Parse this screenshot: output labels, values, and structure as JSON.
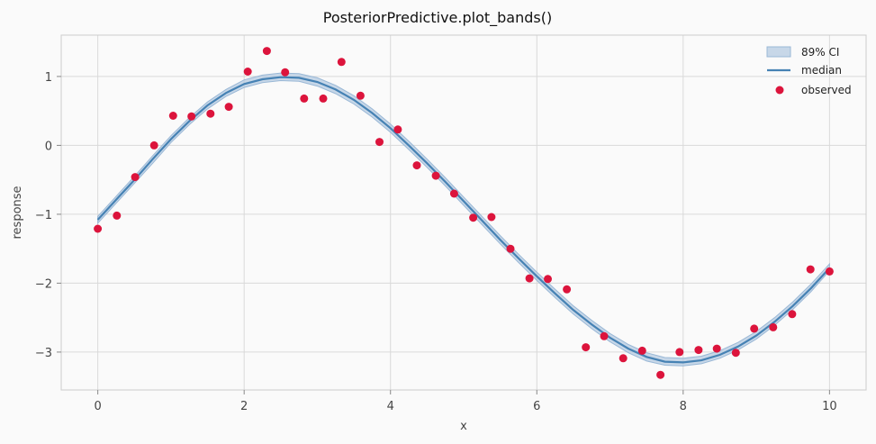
{
  "chart_data": {
    "type": "line",
    "title": "PosteriorPredictive.plot_bands()",
    "xlabel": "x",
    "ylabel": "response",
    "xlim": [
      -0.5,
      10.5
    ],
    "ylim": [
      -3.55,
      1.6
    ],
    "xticks": [
      0,
      2,
      4,
      6,
      8,
      10
    ],
    "xtick_labels": [
      "0",
      "2",
      "4",
      "6",
      "8",
      "10"
    ],
    "yticks": [
      1,
      0,
      -1,
      -2,
      -3
    ],
    "ytick_labels": [
      "1",
      "0",
      "−1",
      "−2",
      "−3"
    ],
    "grid": true,
    "legend_position": "top-right",
    "legend": {
      "band_label": "89% CI",
      "median_label": "median",
      "observed_label": "observed"
    },
    "colors": {
      "band_fill": "#b0c8e0",
      "band_edge": "#9ab8d6",
      "median": "#4682b4",
      "observed": "#dc143c",
      "grid": "#d9d9d9",
      "frame": "#cccccc"
    },
    "band": {
      "x": [
        0,
        0.25,
        0.5,
        0.75,
        1.0,
        1.25,
        1.5,
        1.75,
        2.0,
        2.25,
        2.5,
        2.75,
        3.0,
        3.25,
        3.5,
        3.75,
        4.0,
        4.25,
        4.5,
        4.75,
        5.0,
        5.25,
        5.5,
        5.75,
        6.0,
        6.25,
        6.5,
        6.75,
        7.0,
        7.25,
        7.5,
        7.75,
        8.0,
        8.25,
        8.5,
        8.75,
        9.0,
        9.25,
        9.5,
        9.75,
        10.0
      ],
      "median": [
        -1.08,
        -0.79,
        -0.5,
        -0.2,
        0.09,
        0.35,
        0.58,
        0.76,
        0.89,
        0.96,
        0.99,
        0.98,
        0.92,
        0.81,
        0.66,
        0.47,
        0.25,
        0.0,
        -0.26,
        -0.53,
        -0.81,
        -1.09,
        -1.37,
        -1.64,
        -1.9,
        -2.15,
        -2.39,
        -2.6,
        -2.79,
        -2.95,
        -3.07,
        -3.14,
        -3.15,
        -3.12,
        -3.04,
        -2.92,
        -2.76,
        -2.56,
        -2.33,
        -2.07,
        -1.78
      ],
      "lower": [
        -1.13,
        -0.84,
        -0.55,
        -0.26,
        0.04,
        0.3,
        0.53,
        0.71,
        0.84,
        0.91,
        0.94,
        0.93,
        0.86,
        0.75,
        0.6,
        0.41,
        0.19,
        -0.06,
        -0.32,
        -0.59,
        -0.87,
        -1.15,
        -1.43,
        -1.7,
        -1.96,
        -2.21,
        -2.45,
        -2.66,
        -2.85,
        -3.01,
        -3.13,
        -3.19,
        -3.2,
        -3.17,
        -3.09,
        -2.97,
        -2.81,
        -2.61,
        -2.38,
        -2.12,
        -1.82
      ],
      "upper": [
        -1.03,
        -0.74,
        -0.45,
        -0.15,
        0.14,
        0.4,
        0.63,
        0.81,
        0.95,
        1.02,
        1.05,
        1.04,
        0.98,
        0.87,
        0.72,
        0.53,
        0.31,
        0.06,
        -0.2,
        -0.47,
        -0.75,
        -1.03,
        -1.31,
        -1.58,
        -1.84,
        -2.09,
        -2.33,
        -2.54,
        -2.73,
        -2.89,
        -3.01,
        -3.08,
        -3.09,
        -3.06,
        -2.98,
        -2.86,
        -2.7,
        -2.5,
        -2.27,
        -2.01,
        -1.72
      ]
    },
    "observed": [
      {
        "x": 0.0,
        "y": -1.21
      },
      {
        "x": 0.26,
        "y": -1.02
      },
      {
        "x": 0.51,
        "y": -0.46
      },
      {
        "x": 0.77,
        "y": 0.0
      },
      {
        "x": 1.03,
        "y": 0.43
      },
      {
        "x": 1.28,
        "y": 0.42
      },
      {
        "x": 1.54,
        "y": 0.46
      },
      {
        "x": 1.79,
        "y": 0.56
      },
      {
        "x": 2.05,
        "y": 1.07
      },
      {
        "x": 2.31,
        "y": 1.37
      },
      {
        "x": 2.56,
        "y": 1.06
      },
      {
        "x": 2.82,
        "y": 0.68
      },
      {
        "x": 3.08,
        "y": 0.68
      },
      {
        "x": 3.33,
        "y": 1.21
      },
      {
        "x": 3.59,
        "y": 0.72
      },
      {
        "x": 3.85,
        "y": 0.05
      },
      {
        "x": 4.1,
        "y": 0.23
      },
      {
        "x": 4.36,
        "y": -0.29
      },
      {
        "x": 4.62,
        "y": -0.44
      },
      {
        "x": 4.87,
        "y": -0.7
      },
      {
        "x": 5.13,
        "y": -1.05
      },
      {
        "x": 5.38,
        "y": -1.04
      },
      {
        "x": 5.64,
        "y": -1.5
      },
      {
        "x": 5.9,
        "y": -1.93
      },
      {
        "x": 6.15,
        "y": -1.94
      },
      {
        "x": 6.41,
        "y": -2.09
      },
      {
        "x": 6.67,
        "y": -2.93
      },
      {
        "x": 6.92,
        "y": -2.77
      },
      {
        "x": 7.18,
        "y": -3.09
      },
      {
        "x": 7.44,
        "y": -2.98
      },
      {
        "x": 7.69,
        "y": -3.33
      },
      {
        "x": 7.95,
        "y": -3.0
      },
      {
        "x": 8.21,
        "y": -2.97
      },
      {
        "x": 8.46,
        "y": -2.95
      },
      {
        "x": 8.72,
        "y": -3.01
      },
      {
        "x": 8.97,
        "y": -2.66
      },
      {
        "x": 9.23,
        "y": -2.64
      },
      {
        "x": 9.49,
        "y": -2.45
      },
      {
        "x": 9.74,
        "y": -1.8
      },
      {
        "x": 10.0,
        "y": -1.83
      }
    ]
  }
}
